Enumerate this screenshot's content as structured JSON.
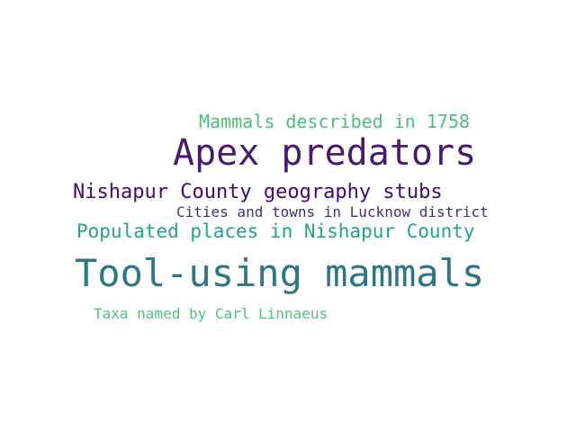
{
  "words": [
    {
      "text": "Mammals described in 1758",
      "color": "#4cbf7d"
    },
    {
      "text": "Apex predators",
      "color": "#481a6c"
    },
    {
      "text": "Nishapur County geography stubs",
      "color": "#440a68"
    },
    {
      "text": "Cities and towns in Lucknow district",
      "color": "#472d7b"
    },
    {
      "text": "Populated places in Nishapur County",
      "color": "#25a28b"
    },
    {
      "text": "Tool-using mammals",
      "color": "#2d7686"
    },
    {
      "text": "Taxa named by Carl Linnaeus",
      "color": "#4ec47a"
    }
  ]
}
